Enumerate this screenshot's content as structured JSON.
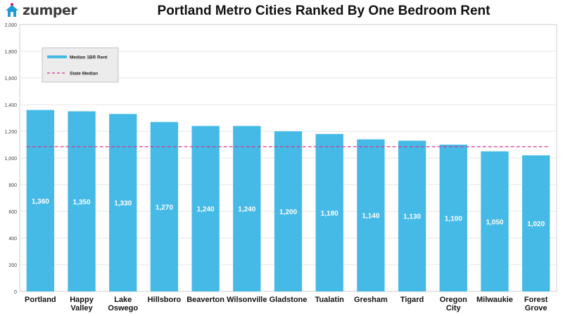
{
  "brand": {
    "name": "zumper",
    "color": "#1f9bd7",
    "accent": "#e6185c"
  },
  "chart_data": {
    "type": "bar",
    "title": "Portland Metro Cities Ranked By One Bedroom Rent",
    "categories": [
      [
        "Portland"
      ],
      [
        "Happy",
        "Valley"
      ],
      [
        "Lake",
        "Oswego"
      ],
      [
        "Hillsboro"
      ],
      [
        "Beaverton"
      ],
      [
        "Wilsonville"
      ],
      [
        "Gladstone"
      ],
      [
        "Tualatin"
      ],
      [
        "Gresham"
      ],
      [
        "Tigard"
      ],
      [
        "Oregon",
        "City"
      ],
      [
        "Milwaukie"
      ],
      [
        "Forest",
        "Grove"
      ]
    ],
    "series": [
      {
        "name": "Median 1BR Rent",
        "values": [
          1360,
          1350,
          1330,
          1270,
          1240,
          1240,
          1200,
          1180,
          1140,
          1130,
          1100,
          1050,
          1020
        ],
        "labels": [
          "1,360",
          "1,350",
          "1,330",
          "1,270",
          "1,240",
          "1,240",
          "1,200",
          "1,180",
          "1,140",
          "1,130",
          "1,100",
          "1,050",
          "1,020"
        ],
        "color": "#45bae6"
      },
      {
        "name": "State Median",
        "type": "reference-line",
        "value": 1085,
        "color": "#d6338e"
      }
    ],
    "ylim": [
      0,
      2000
    ],
    "yticks": [
      0,
      200,
      400,
      600,
      800,
      1000,
      1200,
      1400,
      1600,
      1800,
      2000
    ],
    "ytick_labels": [
      "0",
      "200",
      "400",
      "600",
      "800",
      "1,000",
      "1,200",
      "1,400",
      "1,600",
      "1,800",
      "2,000"
    ],
    "grid": true,
    "legend_position": "top-left"
  }
}
